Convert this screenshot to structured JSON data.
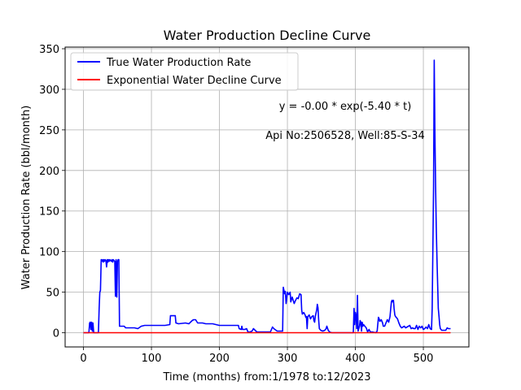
{
  "chart_data": {
    "type": "line",
    "title": "Water Production Decline Curve",
    "xlabel": "Time (months) from:1/1978 to:12/2023",
    "ylabel": "Water Production Rate (bbl/month)",
    "xlim": [
      -27,
      567
    ],
    "ylim": [
      -17.5,
      352
    ],
    "xticks": [
      0,
      100,
      200,
      300,
      400,
      500
    ],
    "yticks": [
      0,
      50,
      100,
      150,
      200,
      250,
      300,
      350
    ],
    "grid": true,
    "legend_position": "top-left",
    "annotations": [
      {
        "text": "y = -0.00 * exp(-5.40 * t)",
        "x": 385,
        "y": 275
      },
      {
        "text": "Api No:2506528, Well:85-S-34",
        "x": 385,
        "y": 239
      }
    ],
    "series": [
      {
        "name": "True Water Production Rate",
        "color": "#0000ff",
        "points": [
          [
            0,
            0
          ],
          [
            8,
            0
          ],
          [
            9,
            12
          ],
          [
            10,
            13
          ],
          [
            11,
            4
          ],
          [
            12,
            13
          ],
          [
            13,
            2
          ],
          [
            14,
            12
          ],
          [
            15,
            0
          ],
          [
            22,
            0
          ],
          [
            23,
            30
          ],
          [
            24,
            50
          ],
          [
            25,
            52
          ],
          [
            26,
            90
          ],
          [
            27,
            88
          ],
          [
            28,
            90
          ],
          [
            29,
            87
          ],
          [
            30,
            90
          ],
          [
            31,
            88
          ],
          [
            32,
            90
          ],
          [
            33,
            89
          ],
          [
            34,
            81
          ],
          [
            35,
            90
          ],
          [
            36,
            87
          ],
          [
            37,
            90
          ],
          [
            38,
            88
          ],
          [
            39,
            90
          ],
          [
            40,
            89
          ],
          [
            41,
            88
          ],
          [
            42,
            90
          ],
          [
            43,
            87
          ],
          [
            44,
            90
          ],
          [
            45,
            89
          ],
          [
            46,
            88
          ],
          [
            47,
            45
          ],
          [
            48,
            90
          ],
          [
            49,
            44
          ],
          [
            50,
            88
          ],
          [
            51,
            90
          ],
          [
            52,
            90
          ],
          [
            53,
            8
          ],
          [
            60,
            8
          ],
          [
            62,
            6
          ],
          [
            70,
            6
          ],
          [
            75,
            6
          ],
          [
            80,
            5
          ],
          [
            85,
            8
          ],
          [
            90,
            9
          ],
          [
            100,
            9
          ],
          [
            110,
            9
          ],
          [
            120,
            9
          ],
          [
            127,
            10
          ],
          [
            128,
            21
          ],
          [
            130,
            21
          ],
          [
            135,
            21
          ],
          [
            136,
            12
          ],
          [
            140,
            11
          ],
          [
            150,
            12
          ],
          [
            155,
            11
          ],
          [
            160,
            15
          ],
          [
            162,
            16
          ],
          [
            165,
            16
          ],
          [
            168,
            12
          ],
          [
            175,
            12
          ],
          [
            180,
            11
          ],
          [
            190,
            11
          ],
          [
            200,
            9
          ],
          [
            210,
            9
          ],
          [
            220,
            9
          ],
          [
            228,
            9
          ],
          [
            229,
            5
          ],
          [
            232,
            4
          ],
          [
            233,
            8
          ],
          [
            234,
            4
          ],
          [
            237,
            4
          ],
          [
            240,
            5
          ],
          [
            242,
            1
          ],
          [
            245,
            1
          ],
          [
            248,
            2
          ],
          [
            250,
            5
          ],
          [
            255,
            1
          ],
          [
            265,
            1
          ],
          [
            275,
            1
          ],
          [
            278,
            7
          ],
          [
            280,
            5
          ],
          [
            285,
            2
          ],
          [
            293,
            2
          ],
          [
            294,
            56
          ],
          [
            296,
            48
          ],
          [
            297,
            51
          ],
          [
            298,
            36
          ],
          [
            300,
            50
          ],
          [
            302,
            47
          ],
          [
            304,
            50
          ],
          [
            305,
            38
          ],
          [
            307,
            44
          ],
          [
            310,
            36
          ],
          [
            312,
            40
          ],
          [
            314,
            43
          ],
          [
            316,
            42
          ],
          [
            318,
            48
          ],
          [
            320,
            47
          ],
          [
            321,
            28
          ],
          [
            322,
            23
          ],
          [
            324,
            25
          ],
          [
            326,
            22
          ],
          [
            327,
            19
          ],
          [
            328,
            20
          ],
          [
            329,
            5
          ],
          [
            330,
            20
          ],
          [
            332,
            22
          ],
          [
            334,
            17
          ],
          [
            336,
            20
          ],
          [
            338,
            21
          ],
          [
            339,
            15
          ],
          [
            340,
            13
          ],
          [
            341,
            20
          ],
          [
            343,
            28
          ],
          [
            344,
            35
          ],
          [
            345,
            31
          ],
          [
            346,
            15
          ],
          [
            347,
            5
          ],
          [
            349,
            3
          ],
          [
            352,
            2
          ],
          [
            355,
            3
          ],
          [
            357,
            5
          ],
          [
            358,
            8
          ],
          [
            360,
            3
          ],
          [
            362,
            1
          ],
          [
            365,
            0
          ],
          [
            375,
            0
          ],
          [
            385,
            0
          ],
          [
            395,
            0
          ],
          [
            397,
            0
          ],
          [
            398,
            30
          ],
          [
            399,
            10
          ],
          [
            400,
            25
          ],
          [
            401,
            20
          ],
          [
            402,
            5
          ],
          [
            403,
            46
          ],
          [
            404,
            2
          ],
          [
            406,
            8
          ],
          [
            407,
            15
          ],
          [
            408,
            13
          ],
          [
            409,
            2
          ],
          [
            410,
            13
          ],
          [
            411,
            8
          ],
          [
            412,
            10
          ],
          [
            414,
            8
          ],
          [
            416,
            6
          ],
          [
            418,
            1
          ],
          [
            420,
            4
          ],
          [
            422,
            1
          ],
          [
            425,
            1
          ],
          [
            430,
            0
          ],
          [
            432,
            2
          ],
          [
            434,
            19
          ],
          [
            435,
            17
          ],
          [
            436,
            14
          ],
          [
            438,
            16
          ],
          [
            440,
            12
          ],
          [
            441,
            8
          ],
          [
            443,
            8
          ],
          [
            445,
            12
          ],
          [
            447,
            16
          ],
          [
            449,
            13
          ],
          [
            451,
            20
          ],
          [
            452,
            30
          ],
          [
            453,
            38
          ],
          [
            454,
            40
          ],
          [
            455,
            38
          ],
          [
            456,
            40
          ],
          [
            457,
            30
          ],
          [
            458,
            22
          ],
          [
            459,
            20
          ],
          [
            460,
            19
          ],
          [
            462,
            17
          ],
          [
            464,
            12
          ],
          [
            466,
            8
          ],
          [
            468,
            6
          ],
          [
            470,
            7
          ],
          [
            472,
            8
          ],
          [
            474,
            6
          ],
          [
            476,
            7
          ],
          [
            478,
            8
          ],
          [
            480,
            9
          ],
          [
            482,
            5
          ],
          [
            484,
            6
          ],
          [
            486,
            5
          ],
          [
            488,
            5
          ],
          [
            490,
            9
          ],
          [
            492,
            4
          ],
          [
            494,
            8
          ],
          [
            496,
            6
          ],
          [
            498,
            8
          ],
          [
            500,
            4
          ],
          [
            502,
            5
          ],
          [
            504,
            7
          ],
          [
            506,
            5
          ],
          [
            508,
            10
          ],
          [
            510,
            5
          ],
          [
            512,
            4
          ],
          [
            513,
            30
          ],
          [
            514,
            100
          ],
          [
            515,
            180
          ],
          [
            516,
            336
          ],
          [
            517,
            250
          ],
          [
            518,
            180
          ],
          [
            519,
            130
          ],
          [
            520,
            90
          ],
          [
            521,
            60
          ],
          [
            522,
            30
          ],
          [
            523,
            20
          ],
          [
            524,
            10
          ],
          [
            525,
            5
          ],
          [
            527,
            3
          ],
          [
            530,
            3
          ],
          [
            533,
            3
          ],
          [
            535,
            6
          ],
          [
            537,
            5
          ],
          [
            540,
            5
          ]
        ]
      },
      {
        "name": "Exponential Water Decline Curve",
        "color": "#ff0000",
        "points": [
          [
            0,
            0
          ],
          [
            540,
            0
          ]
        ]
      }
    ]
  }
}
